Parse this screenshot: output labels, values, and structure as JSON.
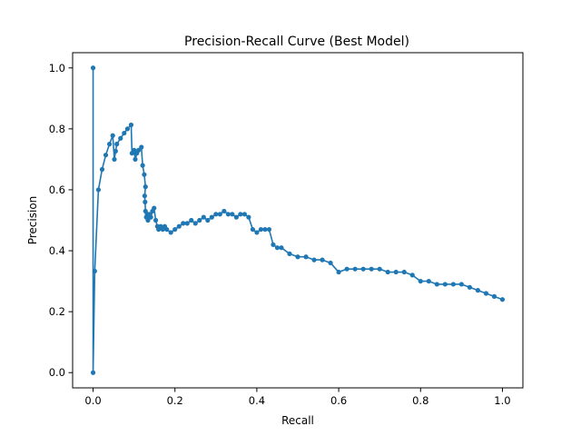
{
  "chart_data": {
    "type": "line",
    "title": "Precision-Recall Curve (Best Model)",
    "xlabel": "Recall",
    "ylabel": "Precision",
    "xlim": [
      -0.05,
      1.05
    ],
    "ylim": [
      -0.05,
      1.05
    ],
    "xticks": [
      0.0,
      0.2,
      0.4,
      0.6,
      0.8,
      1.0
    ],
    "yticks": [
      0.0,
      0.2,
      0.4,
      0.6,
      0.8,
      1.0
    ],
    "xtick_labels": [
      "0.0",
      "0.2",
      "0.4",
      "0.6",
      "0.8",
      "1.0"
    ],
    "ytick_labels": [
      "0.0",
      "0.2",
      "0.4",
      "0.6",
      "0.8",
      "1.0"
    ],
    "grid": false,
    "legend": false,
    "marker": "circle",
    "color": "#1f77b4",
    "series": [
      {
        "x": [
          0.0,
          0.0,
          0.004,
          0.013,
          0.022,
          0.031,
          0.04,
          0.048,
          0.052,
          0.055,
          0.058,
          0.067,
          0.076,
          0.084,
          0.093,
          0.095,
          0.1,
          0.103,
          0.107,
          0.111,
          0.118,
          0.121,
          0.125,
          0.128,
          0.126,
          0.127,
          0.128,
          0.13,
          0.132,
          0.134,
          0.137,
          0.141,
          0.145,
          0.149,
          0.153,
          0.157,
          0.16,
          0.165,
          0.17,
          0.175,
          0.18,
          0.19,
          0.2,
          0.21,
          0.22,
          0.23,
          0.24,
          0.25,
          0.26,
          0.27,
          0.28,
          0.29,
          0.3,
          0.31,
          0.32,
          0.33,
          0.34,
          0.35,
          0.36,
          0.37,
          0.38,
          0.39,
          0.4,
          0.41,
          0.42,
          0.43,
          0.44,
          0.45,
          0.46,
          0.48,
          0.5,
          0.52,
          0.54,
          0.56,
          0.58,
          0.6,
          0.62,
          0.64,
          0.66,
          0.68,
          0.7,
          0.72,
          0.74,
          0.76,
          0.78,
          0.8,
          0.82,
          0.84,
          0.86,
          0.88,
          0.9,
          0.92,
          0.94,
          0.96,
          0.98,
          1.0
        ],
        "y": [
          1.0,
          0.0,
          0.333,
          0.6,
          0.667,
          0.714,
          0.75,
          0.778,
          0.7,
          0.727,
          0.75,
          0.769,
          0.786,
          0.8,
          0.813,
          0.72,
          0.73,
          0.7,
          0.72,
          0.73,
          0.74,
          0.68,
          0.65,
          0.61,
          0.58,
          0.56,
          0.53,
          0.51,
          0.52,
          0.5,
          0.52,
          0.51,
          0.53,
          0.54,
          0.5,
          0.48,
          0.47,
          0.48,
          0.47,
          0.48,
          0.47,
          0.46,
          0.47,
          0.48,
          0.49,
          0.49,
          0.5,
          0.49,
          0.5,
          0.51,
          0.5,
          0.51,
          0.52,
          0.52,
          0.53,
          0.52,
          0.52,
          0.51,
          0.52,
          0.52,
          0.51,
          0.47,
          0.46,
          0.47,
          0.47,
          0.47,
          0.42,
          0.41,
          0.41,
          0.39,
          0.38,
          0.38,
          0.37,
          0.37,
          0.36,
          0.33,
          0.34,
          0.34,
          0.34,
          0.34,
          0.34,
          0.33,
          0.33,
          0.33,
          0.32,
          0.3,
          0.3,
          0.29,
          0.29,
          0.29,
          0.29,
          0.28,
          0.27,
          0.26,
          0.25,
          0.24
        ]
      }
    ]
  }
}
